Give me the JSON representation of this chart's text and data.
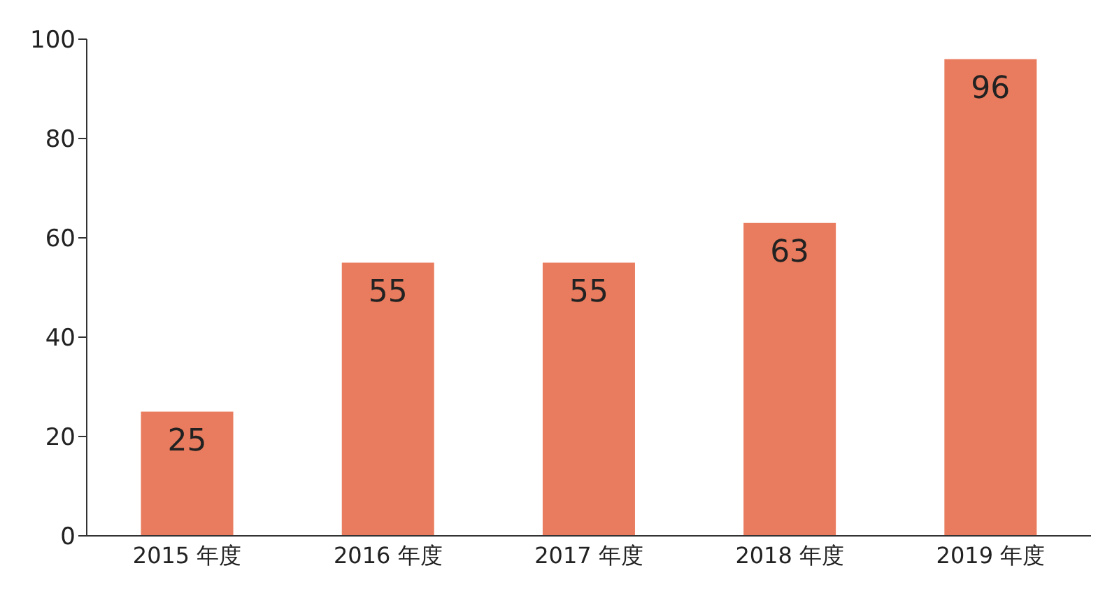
{
  "chart_data": {
    "type": "bar",
    "categories": [
      "2015 年度",
      "2016 年度",
      "2017 年度",
      "2018 年度",
      "2019 年度"
    ],
    "values": [
      25,
      55,
      55,
      63,
      96
    ],
    "color": "#e97c5e",
    "ylim": [
      0,
      100
    ],
    "yticks": [
      0,
      20,
      40,
      60,
      80,
      100
    ],
    "grid": false,
    "data_labels": true
  }
}
